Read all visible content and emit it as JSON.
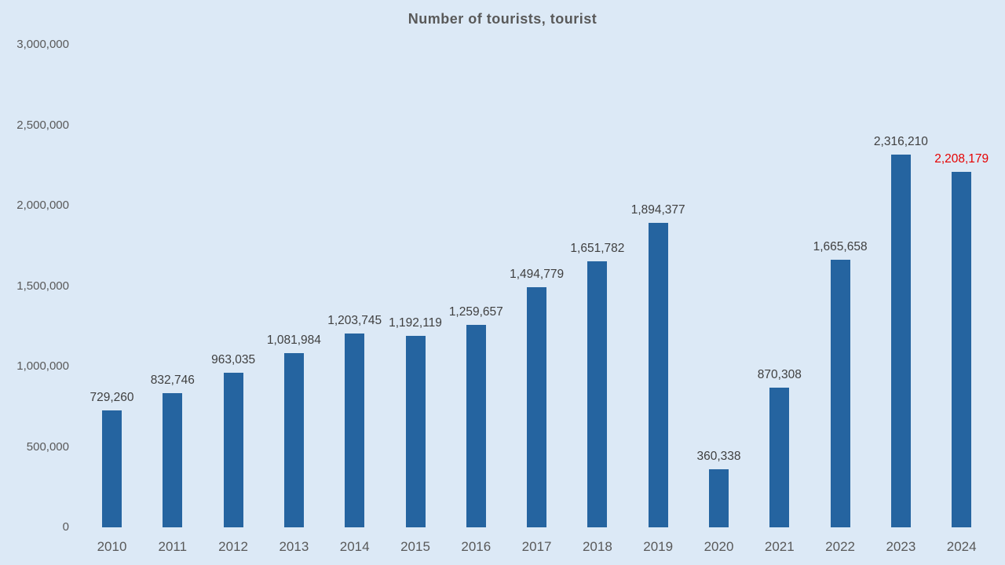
{
  "chart_data": {
    "type": "bar",
    "title": "Number of tourists, tourist",
    "xlabel": "",
    "ylabel": "",
    "categories": [
      "2010",
      "2011",
      "2012",
      "2013",
      "2014",
      "2015",
      "2016",
      "2017",
      "2018",
      "2019",
      "2020",
      "2021",
      "2022",
      "2023",
      "2024"
    ],
    "values": [
      729260,
      832746,
      963035,
      1081984,
      1203745,
      1192119,
      1259657,
      1494779,
      1651782,
      1894377,
      360338,
      870308,
      1665658,
      2316210,
      2208179
    ],
    "value_labels": [
      "729,260",
      "832,746",
      "963,035",
      "1,081,984",
      "1,203,745",
      "1,192,119",
      "1,259,657",
      "1,494,779",
      "1,651,782",
      "1,894,377",
      "360,338",
      "870,308",
      "1,665,658",
      "2,316,210",
      "2,208,179"
    ],
    "ylim": [
      0,
      3000000
    ],
    "yticks": [
      0,
      500000,
      1000000,
      1500000,
      2000000,
      2500000,
      3000000
    ],
    "ytick_labels": [
      "0",
      "500,000",
      "1,000,000",
      "1,500,000",
      "2,000,000",
      "2,500,000",
      "3,000,000"
    ],
    "grid": false,
    "legend": false,
    "highlight": {
      "index": 14,
      "label_color": "#e60000"
    },
    "colors": {
      "background": "#dce9f6",
      "bar": "#2564a0",
      "title": "#595959",
      "axis_label": "#595959",
      "value_label": "#3f3f3f"
    }
  }
}
